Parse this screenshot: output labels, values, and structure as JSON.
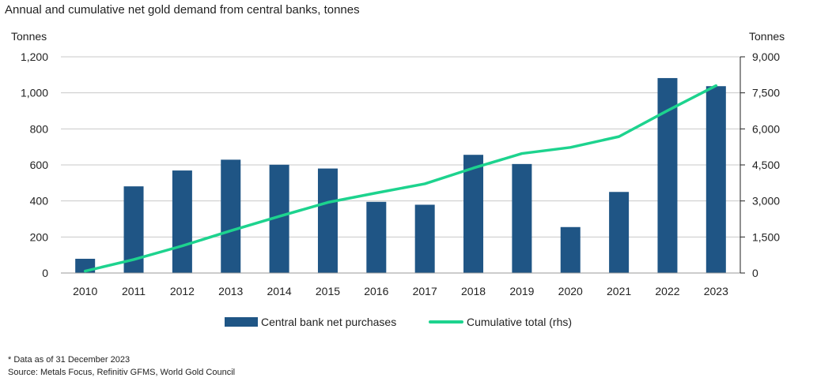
{
  "chart_data": {
    "type": "bar",
    "title": "Annual and cumulative net gold demand from central banks, tonnes",
    "xlabel": "",
    "ylabel": "Tonnes",
    "y2label": "Tonnes",
    "categories": [
      "2010",
      "2011",
      "2012",
      "2013",
      "2014",
      "2015",
      "2016",
      "2017",
      "2018",
      "2019",
      "2020",
      "2021",
      "2022",
      "2023"
    ],
    "series": [
      {
        "name": "Central bank net purchases",
        "type": "bar",
        "axis": "left",
        "color": "#1F5585",
        "values": [
          79,
          481,
          569,
          629,
          601,
          580,
          395,
          379,
          656,
          605,
          255,
          450,
          1082,
          1037
        ]
      },
      {
        "name": "Cumulative total (rhs)",
        "type": "line",
        "axis": "right",
        "color": "#1DD38E",
        "values": [
          79,
          560,
          1129,
          1758,
          2359,
          2939,
          3334,
          3713,
          4369,
          4974,
          5229,
          5679,
          6761,
          7798
        ]
      }
    ],
    "ylim": [
      0,
      1200
    ],
    "yticks": [
      0,
      200,
      400,
      600,
      800,
      1000,
      1200
    ],
    "ytick_labels": [
      "0",
      "200",
      "400",
      "600",
      "800",
      "1,000",
      "1,200"
    ],
    "y2lim": [
      0,
      9000
    ],
    "y2ticks": [
      0,
      1500,
      3000,
      4500,
      6000,
      7500,
      9000
    ],
    "y2tick_labels": [
      "0",
      "1,500",
      "3,000",
      "4,500",
      "6,000",
      "7,500",
      "9,000"
    ],
    "grid": true,
    "legend_position": "bottom"
  },
  "notes": {
    "line1": "* Data as of 31 December 2023",
    "line2": "Source: Metals Focus, Refinitiv GFMS, World Gold Council"
  }
}
